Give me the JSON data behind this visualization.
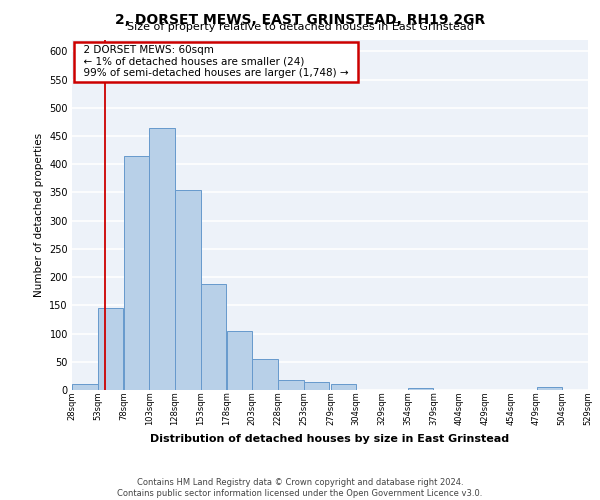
{
  "title": "2, DORSET MEWS, EAST GRINSTEAD, RH19 2GR",
  "subtitle": "Size of property relative to detached houses in East Grinstead",
  "xlabel": "Distribution of detached houses by size in East Grinstead",
  "ylabel": "Number of detached properties",
  "bar_color": "#b8d0e8",
  "bar_edge_color": "#6699cc",
  "bin_edges": [
    28,
    53,
    78,
    103,
    128,
    153,
    178,
    203,
    228,
    253,
    279,
    304,
    329,
    354,
    379,
    404,
    429,
    454,
    479,
    504,
    529
  ],
  "bar_heights": [
    10,
    145,
    415,
    465,
    355,
    188,
    104,
    55,
    18,
    14,
    11,
    0,
    0,
    4,
    0,
    0,
    0,
    0,
    5,
    0
  ],
  "x_tick_labels": [
    "28sqm",
    "53sqm",
    "78sqm",
    "103sqm",
    "128sqm",
    "153sqm",
    "178sqm",
    "203sqm",
    "228sqm",
    "253sqm",
    "279sqm",
    "304sqm",
    "329sqm",
    "354sqm",
    "379sqm",
    "404sqm",
    "429sqm",
    "454sqm",
    "479sqm",
    "504sqm",
    "529sqm"
  ],
  "ylim": [
    0,
    620
  ],
  "yticks": [
    0,
    50,
    100,
    150,
    200,
    250,
    300,
    350,
    400,
    450,
    500,
    550,
    600
  ],
  "property_line_x": 60,
  "annotation_title": "2 DORSET MEWS: 60sqm",
  "annotation_line1": "← 1% of detached houses are smaller (24)",
  "annotation_line2": "99% of semi-detached houses are larger (1,748) →",
  "vline_color": "#cc0000",
  "annotation_box_color": "#cc0000",
  "background_color": "#edf2f9",
  "grid_color": "#ffffff",
  "footer_line1": "Contains HM Land Registry data © Crown copyright and database right 2024.",
  "footer_line2": "Contains public sector information licensed under the Open Government Licence v3.0."
}
